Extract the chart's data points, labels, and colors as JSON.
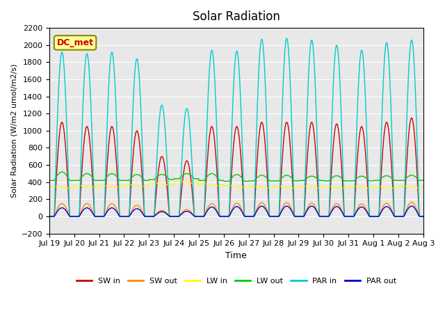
{
  "title": "Solar Radiation",
  "ylabel": "Solar Radiation (W/m2 umol/m2/s)",
  "xlabel": "Time",
  "annotation": "DC_met",
  "ylim": [
    -200,
    2200
  ],
  "yticks": [
    -200,
    0,
    200,
    400,
    600,
    800,
    1000,
    1200,
    1400,
    1600,
    1800,
    2000,
    2200
  ],
  "xtick_labels": [
    "Jul 19",
    "Jul 20",
    "Jul 21",
    "Jul 22",
    "Jul 23",
    "Jul 24",
    "Jul 25",
    "Jul 26",
    "Jul 27",
    "Jul 28",
    "Jul 29",
    "Jul 30",
    "Jul 31",
    "Aug 1",
    "Aug 2",
    "Aug 3"
  ],
  "series": {
    "SW_in": {
      "color": "#cc0000",
      "label": "SW in"
    },
    "SW_out": {
      "color": "#ff8800",
      "label": "SW out"
    },
    "LW_in": {
      "color": "#ffff00",
      "label": "LW in"
    },
    "LW_out": {
      "color": "#00cc00",
      "label": "LW out"
    },
    "PAR_in": {
      "color": "#00cccc",
      "label": "PAR in"
    },
    "PAR_out": {
      "color": "#0000cc",
      "label": "PAR out"
    }
  },
  "bg_color": "#e8e8e8",
  "fig_bg": "#ffffff",
  "grid_color": "#ffffff",
  "annotation_bg": "#ffff99",
  "annotation_fg": "#cc0000",
  "annotation_border": "#888800",
  "sw_in_peaks": [
    1100,
    1050,
    1050,
    1000,
    700,
    650,
    1050,
    1050,
    1100,
    1100,
    1100,
    1080,
    1050,
    1100,
    1150
  ],
  "sw_out_peaks": [
    150,
    150,
    150,
    130,
    70,
    80,
    150,
    155,
    160,
    160,
    155,
    150,
    145,
    155,
    165
  ],
  "lw_in_base": [
    340,
    350,
    350,
    360,
    380,
    400,
    370,
    350,
    340,
    340,
    340,
    340,
    340,
    340,
    345
  ],
  "lw_out_base": [
    420,
    420,
    420,
    420,
    430,
    440,
    420,
    410,
    415,
    415,
    420,
    415,
    415,
    420,
    420
  ],
  "lw_out_peaks": [
    520,
    500,
    500,
    490,
    490,
    500,
    500,
    490,
    480,
    480,
    470,
    475,
    470,
    475,
    480
  ],
  "par_in_peaks": [
    1920,
    1900,
    1920,
    1840,
    1300,
    1260,
    1940,
    1930,
    2070,
    2080,
    2060,
    2000,
    1940,
    2030,
    2060
  ],
  "par_out_peaks": [
    100,
    100,
    100,
    90,
    55,
    60,
    110,
    115,
    120,
    120,
    120,
    115,
    110,
    115,
    120
  ]
}
